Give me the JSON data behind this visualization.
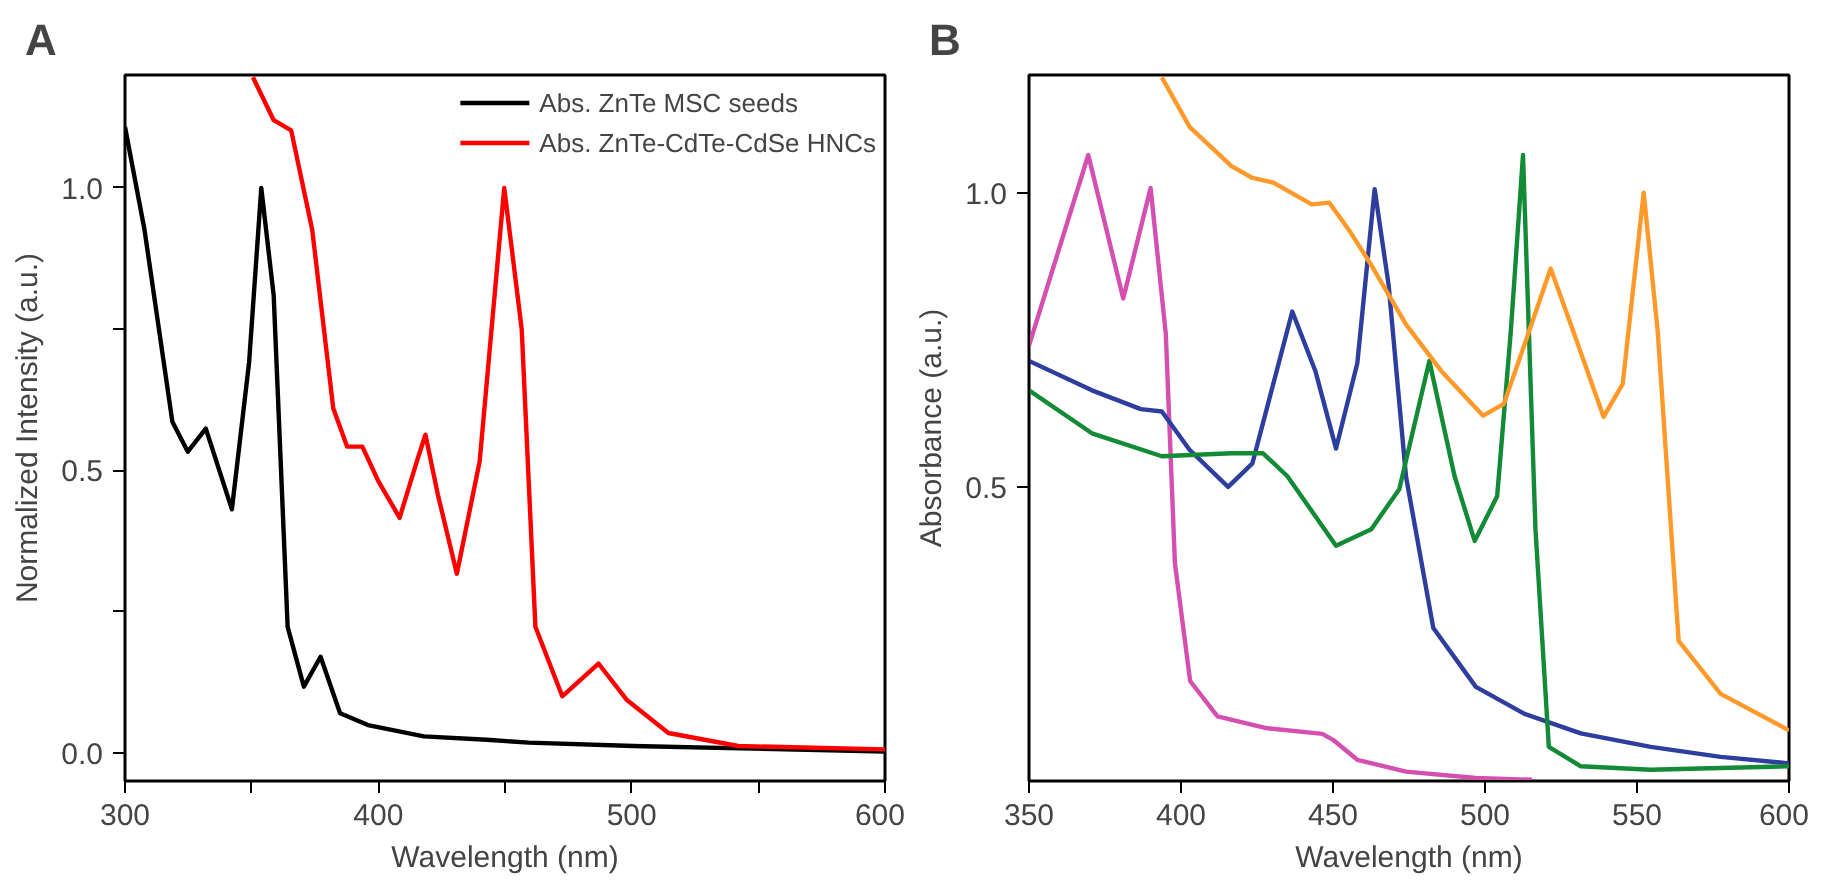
{
  "chart_data": [
    {
      "type": "line",
      "title": "A",
      "xlabel": "Wavelength (nm)",
      "ylabel": "Normalized Intensity (a.u.)",
      "xlim": [
        300,
        600
      ],
      "ylim": [
        -0.05,
        1.2
      ],
      "xticks": [
        300,
        {
          "value": 350,
          "label": null
        },
        400,
        {
          "value": 450,
          "label": null
        },
        500,
        {
          "value": 550,
          "label": null
        },
        600
      ],
      "yticks": [
        {
          "value": 0,
          "label": "0.0"
        },
        {
          "value": 0.25,
          "label": null
        },
        0.5,
        {
          "value": 0.75,
          "label": null
        },
        {
          "value": 1,
          "label": "1.0"
        }
      ],
      "grid": false,
      "legend": "top right",
      "marker": "none",
      "line_style": "solid",
      "series": [
        {
          "name": "Abs. ZnTe MSC seeds",
          "color": "#000000",
          "x": [
            300,
            307.7,
            318.7,
            324.8,
            331.9,
            342.2,
            349,
            353.8,
            358.7,
            364.2,
            370.6,
            377.2,
            384.9,
            395.9,
            418,
            442.8,
            459.4,
            500.7,
            600
          ],
          "values": [
            1.108,
            0.926,
            0.586,
            0.533,
            0.574,
            0.431,
            0.692,
            1.0,
            0.809,
            0.223,
            0.117,
            0.17,
            0.07,
            0.049,
            0.029,
            0.023,
            0.018,
            0.012,
            0.002
          ]
        },
        {
          "name": "Abs. ZnTe-CdTe-CdSe HNCs",
          "color": "#ff0000",
          "x": [
            350.5,
            358.7,
            365.6,
            373.9,
            382.2,
            387.7,
            393.7,
            400,
            408.4,
            415.2,
            418.6,
            423.5,
            431,
            440,
            449.7,
            456.6,
            462,
            472.6,
            486.9,
            498,
            514.5,
            542,
            600
          ],
          "values": [
            1.196,
            1.12,
            1.102,
            0.926,
            0.61,
            0.542,
            0.542,
            0.481,
            0.416,
            0.516,
            0.563,
            0.457,
            0.317,
            0.516,
            1.0,
            0.75,
            0.223,
            0.1,
            0.158,
            0.094,
            0.035,
            0.012,
            0.006
          ]
        }
      ]
    },
    {
      "type": "line",
      "title": "B",
      "xlabel": "Wavelength (nm)",
      "ylabel": "Absorbance (a.u.)",
      "xlim": [
        350,
        600
      ],
      "ylim": [
        0,
        1.2
      ],
      "xticks": [
        350,
        400,
        450,
        500,
        550,
        600
      ],
      "yticks": [
        0.5,
        {
          "value": 1,
          "label": "1.0"
        }
      ],
      "grid": false,
      "legend": false,
      "marker": "none",
      "line_style": "solid",
      "series": [
        {
          "color": "#d44fb0",
          "x": [
            350,
            369.5,
            381,
            390,
            395,
            398,
            403,
            412,
            428,
            446.5,
            450,
            458,
            474,
            497,
            515.5
          ],
          "values": [
            0.74,
            1.064,
            0.82,
            1.008,
            0.76,
            0.37,
            0.17,
            0.11,
            0.09,
            0.08,
            0.07,
            0.036,
            0.016,
            0.005,
            0.002
          ]
        },
        {
          "color": "#2e3e9e",
          "x": [
            350,
            370.7,
            386.8,
            393.7,
            402.8,
            415.5,
            423.5,
            436.6,
            444.2,
            451,
            458,
            463.7,
            468.3,
            474,
            483,
            497,
            513,
            531.5,
            554.5,
            577.5,
            600
          ],
          "values": [
            0.714,
            0.664,
            0.632,
            0.628,
            0.563,
            0.5,
            0.54,
            0.798,
            0.697,
            0.565,
            0.71,
            1.006,
            0.843,
            0.518,
            0.26,
            0.16,
            0.114,
            0.081,
            0.058,
            0.041,
            0.03
          ]
        },
        {
          "color": "#138a36",
          "x": [
            350,
            370.7,
            393.7,
            416.6,
            427,
            435,
            451,
            462.6,
            471.8,
            481.7,
            490,
            496.6,
            504,
            508.5,
            512.5,
            516.6,
            521,
            531.5,
            554.5,
            600
          ],
          "values": [
            0.664,
            0.591,
            0.552,
            0.557,
            0.557,
            0.518,
            0.4,
            0.428,
            0.496,
            0.714,
            0.518,
            0.408,
            0.484,
            0.765,
            1.064,
            0.428,
            0.058,
            0.025,
            0.019,
            0.025
          ]
        },
        {
          "color": "#ff9a2a",
          "x": [
            393.7,
            402.8,
            416.6,
            423.5,
            430.4,
            443,
            448.8,
            455.7,
            462.6,
            474,
            485.6,
            499.4,
            506.2,
            513,
            521.6,
            529,
            539,
            545.3,
            552.2,
            556.8,
            563.7,
            577.5,
            600
          ],
          "values": [
            1.196,
            1.112,
            1.045,
            1.025,
            1.017,
            0.98,
            0.983,
            0.933,
            0.877,
            0.776,
            0.697,
            0.621,
            0.641,
            0.742,
            0.871,
            0.765,
            0.619,
            0.675,
            1.0,
            0.765,
            0.238,
            0.148,
            0.086
          ]
        }
      ]
    }
  ]
}
